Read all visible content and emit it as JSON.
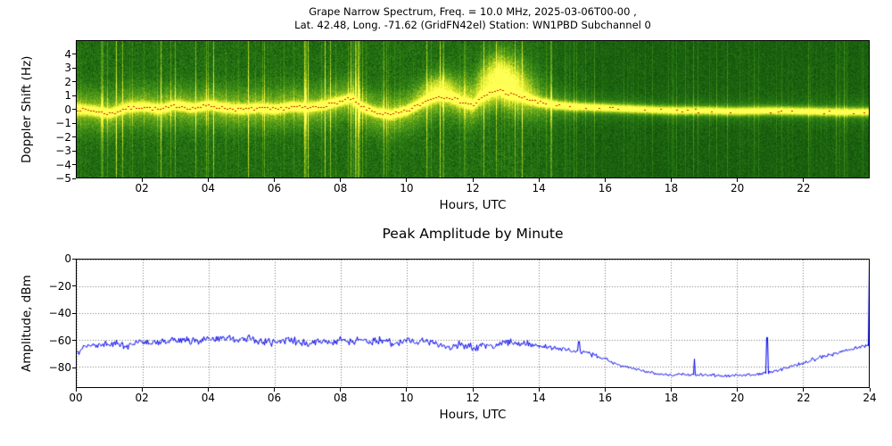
{
  "chart_data": [
    {
      "type": "heatmap",
      "title_line1": "Grape Narrow Spectrum, Freq. = 10.0 MHz, 2025-03-06T00-00 ,",
      "title_line2": "Lat. 42.48, Long. -71.62 (GridFN42el) Station: WN1PBD Subchannel 0",
      "xlabel": "Hours, UTC",
      "ylabel": "Doppler Shift (Hz)",
      "xlim": [
        0,
        24
      ],
      "ylim": [
        -5,
        5
      ],
      "xticks": [
        {
          "v": 2,
          "label": "02"
        },
        {
          "v": 4,
          "label": "04"
        },
        {
          "v": 6,
          "label": "06"
        },
        {
          "v": 8,
          "label": "08"
        },
        {
          "v": 10,
          "label": "10"
        },
        {
          "v": 12,
          "label": "12"
        },
        {
          "v": 14,
          "label": "14"
        },
        {
          "v": 16,
          "label": "16"
        },
        {
          "v": 18,
          "label": "18"
        },
        {
          "v": 20,
          "label": "20"
        },
        {
          "v": 22,
          "label": "22"
        }
      ],
      "yticks": [
        {
          "v": 4,
          "label": "4"
        },
        {
          "v": 3,
          "label": "3"
        },
        {
          "v": 2,
          "label": "2"
        },
        {
          "v": 1,
          "label": "1"
        },
        {
          "v": 0,
          "label": "0"
        },
        {
          "v": -1,
          "label": "−1"
        },
        {
          "v": -2,
          "label": "−2"
        },
        {
          "v": -3,
          "label": "−3"
        },
        {
          "v": -4,
          "label": "−4"
        },
        {
          "v": -5,
          "label": "−5"
        }
      ],
      "colors": {
        "trace": "#cc2200",
        "colormap": [
          [
            0,
            [
              12,
              72,
              10
            ]
          ],
          [
            0.25,
            [
              42,
              122,
              20
            ]
          ],
          [
            0.5,
            [
              92,
              162,
              26
            ]
          ],
          [
            0.7,
            [
              168,
              202,
              32
            ]
          ],
          [
            0.85,
            [
              224,
              234,
              44
            ]
          ],
          [
            1,
            [
              255,
              255,
              84
            ]
          ]
        ]
      },
      "trace": [
        [
          0,
          0.0
        ],
        [
          0.5,
          -0.1
        ],
        [
          1,
          -0.3
        ],
        [
          1.5,
          0.1
        ],
        [
          2,
          0.2
        ],
        [
          2.5,
          0.0
        ],
        [
          3,
          0.3
        ],
        [
          3.5,
          0.1
        ],
        [
          4,
          0.3
        ],
        [
          4.5,
          0.1
        ],
        [
          5,
          0.0
        ],
        [
          5.5,
          0.1
        ],
        [
          6,
          0.0
        ],
        [
          6.5,
          0.2
        ],
        [
          7,
          0.1
        ],
        [
          7.5,
          0.3
        ],
        [
          8,
          0.6
        ],
        [
          8.3,
          0.8
        ],
        [
          8.6,
          0.2
        ],
        [
          9,
          -0.2
        ],
        [
          9.5,
          -0.4
        ],
        [
          10,
          -0.1
        ],
        [
          10.3,
          0.3
        ],
        [
          10.7,
          0.8
        ],
        [
          11,
          1.0
        ],
        [
          11.3,
          0.9
        ],
        [
          11.6,
          0.6
        ],
        [
          12,
          0.3
        ],
        [
          12.2,
          0.8
        ],
        [
          12.5,
          1.2
        ],
        [
          12.8,
          1.5
        ],
        [
          13,
          1.2
        ],
        [
          13.5,
          0.9
        ],
        [
          14,
          0.5
        ],
        [
          14.5,
          0.3
        ],
        [
          15,
          0.2
        ],
        [
          16,
          0.1
        ],
        [
          17,
          0.0
        ],
        [
          18,
          -0.1
        ],
        [
          19,
          -0.1
        ],
        [
          20,
          -0.15
        ],
        [
          21,
          -0.1
        ],
        [
          22,
          -0.15
        ],
        [
          23,
          -0.2
        ],
        [
          24,
          -0.2
        ]
      ],
      "activity": [
        [
          0,
          1
        ],
        [
          9,
          1
        ],
        [
          11,
          1.05
        ],
        [
          13.5,
          1.1
        ],
        [
          14.5,
          0.6
        ],
        [
          15.5,
          0.4
        ],
        [
          17,
          0.3
        ],
        [
          20,
          0.28
        ],
        [
          24,
          0.33
        ]
      ],
      "plumes": [
        {
          "center": 12.9,
          "width": 0.55,
          "amp": 0.65,
          "f_offset": 1.3,
          "f_sigma": 1.1
        },
        {
          "center": 11.0,
          "width": 0.4,
          "amp": 0.35,
          "f_offset": 0.7,
          "f_sigma": 0.7
        }
      ]
    },
    {
      "type": "line",
      "title": "Peak Amplitude by Minute",
      "xlabel": "Hours, UTC",
      "ylabel": "Amplitude, dBm",
      "xlim": [
        0,
        24
      ],
      "ylim": [
        -95,
        0
      ],
      "grid": true,
      "line_color": "#0000ee",
      "xticks": [
        {
          "v": 0,
          "label": "00"
        },
        {
          "v": 2,
          "label": "02"
        },
        {
          "v": 4,
          "label": "04"
        },
        {
          "v": 6,
          "label": "06"
        },
        {
          "v": 8,
          "label": "08"
        },
        {
          "v": 10,
          "label": "10"
        },
        {
          "v": 12,
          "label": "12"
        },
        {
          "v": 14,
          "label": "14"
        },
        {
          "v": 16,
          "label": "16"
        },
        {
          "v": 18,
          "label": "18"
        },
        {
          "v": 20,
          "label": "20"
        },
        {
          "v": 22,
          "label": "22"
        },
        {
          "v": 24,
          "label": "24"
        }
      ],
      "yticks": [
        {
          "v": 0,
          "label": "0"
        },
        {
          "v": -20,
          "label": "−20"
        },
        {
          "v": -40,
          "label": "−40"
        },
        {
          "v": -60,
          "label": "−60"
        },
        {
          "v": -80,
          "label": "−80"
        }
      ],
      "baseline": [
        [
          0,
          -69
        ],
        [
          0.2,
          -65
        ],
        [
          0.5,
          -64
        ],
        [
          1,
          -63
        ],
        [
          1.5,
          -64
        ],
        [
          2,
          -61
        ],
        [
          2.5,
          -62
        ],
        [
          3,
          -60
        ],
        [
          3.5,
          -61
        ],
        [
          4,
          -58
        ],
        [
          4.3,
          -60
        ],
        [
          4.6,
          -58
        ],
        [
          5,
          -60
        ],
        [
          5.3,
          -58
        ],
        [
          5.6,
          -61
        ],
        [
          6,
          -62
        ],
        [
          6.5,
          -60
        ],
        [
          7,
          -63
        ],
        [
          7.3,
          -60
        ],
        [
          7.6,
          -62
        ],
        [
          8,
          -60
        ],
        [
          8.3,
          -62
        ],
        [
          8.6,
          -59
        ],
        [
          9,
          -62
        ],
        [
          9.3,
          -60
        ],
        [
          9.6,
          -63
        ],
        [
          10,
          -60
        ],
        [
          10.3,
          -61
        ],
        [
          10.6,
          -60
        ],
        [
          11,
          -64
        ],
        [
          11.3,
          -66
        ],
        [
          11.6,
          -63
        ],
        [
          12,
          -66
        ],
        [
          12.3,
          -63
        ],
        [
          12.6,
          -65
        ],
        [
          13,
          -61
        ],
        [
          13.3,
          -63
        ],
        [
          13.6,
          -62
        ],
        [
          14,
          -65
        ],
        [
          14.5,
          -66
        ],
        [
          15,
          -68
        ],
        [
          15.5,
          -70
        ],
        [
          16,
          -74
        ],
        [
          16.5,
          -79
        ],
        [
          17,
          -82
        ],
        [
          17.3,
          -84
        ],
        [
          17.6,
          -85
        ],
        [
          18,
          -86
        ],
        [
          18.4,
          -85
        ],
        [
          18.8,
          -86
        ],
        [
          19.2,
          -86
        ],
        [
          19.6,
          -87
        ],
        [
          20,
          -86
        ],
        [
          20.4,
          -86
        ],
        [
          20.8,
          -85
        ],
        [
          21.2,
          -83
        ],
        [
          21.6,
          -80
        ],
        [
          22,
          -77
        ],
        [
          22.4,
          -74
        ],
        [
          22.8,
          -71
        ],
        [
          23.2,
          -68
        ],
        [
          23.6,
          -66
        ],
        [
          24,
          -63
        ]
      ],
      "spikes": [
        [
          15.2,
          -61
        ],
        [
          18.7,
          -74
        ],
        [
          20.9,
          -58
        ],
        [
          24,
          -2
        ]
      ],
      "noise_env": [
        [
          0,
          2.2
        ],
        [
          12,
          2.2
        ],
        [
          14,
          1.8
        ],
        [
          16,
          1.2
        ],
        [
          17,
          0.8
        ],
        [
          20,
          0.8
        ],
        [
          21.5,
          1.0
        ],
        [
          24,
          1.2
        ]
      ]
    }
  ]
}
